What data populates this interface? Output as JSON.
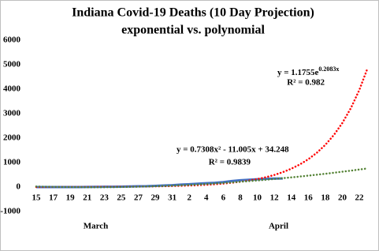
{
  "chart_data": {
    "type": "line",
    "title": "Indiana Covid-19 Deaths (10 Day Projection)",
    "subtitle": "exponential vs. polynomial",
    "categories": [
      "15",
      null,
      "17",
      null,
      "19",
      null,
      "21",
      null,
      "23",
      null,
      "25",
      null,
      "27",
      null,
      "29",
      null,
      "31",
      null,
      "2",
      null,
      "4",
      null,
      "6",
      null,
      "8",
      null,
      "10",
      null,
      "12",
      null,
      "14",
      null,
      "16",
      null,
      "18",
      null,
      "20",
      null,
      "22",
      null
    ],
    "category_groups": [
      {
        "label": "March",
        "center": 7
      },
      {
        "label": "April",
        "center": 28.5
      }
    ],
    "series": [
      {
        "color": "#4472c4",
        "style": "solid",
        "values": [
          0,
          2,
          2,
          2,
          2,
          2,
          4,
          7,
          12,
          14,
          17,
          24,
          31,
          35,
          49,
          65,
          78,
          102,
          116,
          139,
          157,
          173,
          203,
          247,
          280,
          300,
          320,
          335,
          345,
          350,
          null,
          null,
          null,
          null,
          null,
          null,
          null,
          null,
          null,
          null
        ]
      },
      {
        "color": "#ff0000",
        "style": "dotted",
        "values": [
          1.4,
          1.8,
          2.2,
          2.7,
          3.3,
          4.1,
          5.1,
          6.2,
          7.7,
          9.4,
          11.6,
          14.3,
          17.6,
          21.7,
          26.8,
          32.9,
          40.6,
          50,
          61.5,
          75.8,
          93.4,
          115,
          141.6,
          174.4,
          214.8,
          264.5,
          325.8,
          401.3,
          494.2,
          608.7,
          749.7,
          923.3,
          1137,
          1400,
          1725,
          2124,
          2616,
          3222,
          3968,
          4887
        ]
      },
      {
        "color": "#548235",
        "style": "dotted",
        "values": [
          24,
          15,
          8,
          2,
          -2,
          -5,
          -7,
          -7,
          -6,
          -3,
          2,
          8,
          15,
          24,
          34,
          45,
          59,
          73,
          89,
          106,
          125,
          146,
          168,
          191,
          216,
          242,
          270,
          299,
          330,
          362,
          395,
          430,
          467,
          505,
          544,
          585,
          628,
          671,
          717,
          763
        ]
      }
    ],
    "annotations": [
      {
        "text": "y = 1.1755e",
        "exponent": "0.2083x"
      },
      {
        "text": "R² = 0.982"
      },
      {
        "text": "y = 0.7308x² - 11.005x + 34.248"
      },
      {
        "text": "R² = 0.9839"
      }
    ],
    "ylim": [
      -1000,
      6000
    ],
    "yticks": [
      -1000,
      0,
      1000,
      2000,
      3000,
      4000,
      5000,
      6000
    ],
    "grid": false
  }
}
